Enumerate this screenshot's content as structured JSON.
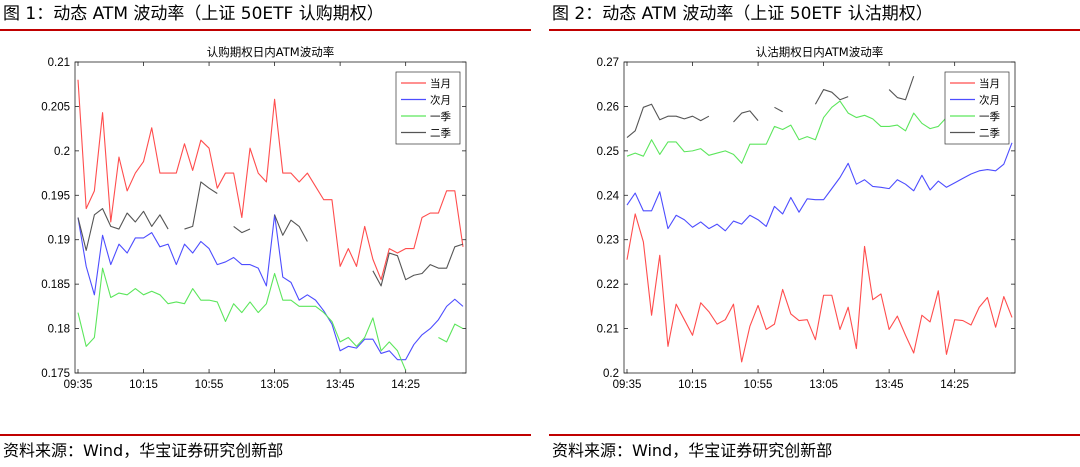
{
  "panels": [
    {
      "figure_title": "图 1：动态 ATM 波动率（上证 50ETF 认购期权）",
      "source": "资料来源：Wind，华宝证券研究创新部"
    },
    {
      "figure_title": "图 2：动态 ATM 波动率（上证 50ETF 认沽期权）",
      "source": "资料来源：Wind，华宝证券研究创新部"
    }
  ],
  "chart_data": [
    {
      "type": "line",
      "title": "认购期权日内ATM波动率",
      "xlabel": "",
      "ylabel": "",
      "x_ticks": [
        "09:35",
        "10:15",
        "10:55",
        "13:05",
        "13:45",
        "14:25"
      ],
      "x_tick_index": [
        0,
        8,
        16,
        24,
        32,
        40
      ],
      "n_points": 48,
      "ylim": [
        0.175,
        0.21
      ],
      "y_ticks": [
        "0.175",
        "0.18",
        "0.185",
        "0.19",
        "0.195",
        "0.2",
        "0.205",
        "0.21"
      ],
      "y_tick_values": [
        0.175,
        0.18,
        0.185,
        0.19,
        0.195,
        0.2,
        0.205,
        0.21
      ],
      "grid": false,
      "legend_position": "top-right",
      "series": [
        {
          "name": "当月",
          "color": "#ff4d4d",
          "values": [
            0.208,
            0.1935,
            0.1955,
            0.2043,
            0.192,
            0.1993,
            0.1955,
            0.1975,
            0.1988,
            0.2026,
            0.1975,
            0.1975,
            0.1975,
            0.2008,
            0.1978,
            0.2012,
            0.2003,
            0.1958,
            0.1975,
            0.1975,
            0.1925,
            0.2003,
            0.1975,
            0.1965,
            0.2058,
            0.1975,
            0.1975,
            0.1965,
            0.1975,
            0.196,
            0.1945,
            0.1945,
            0.187,
            0.189,
            0.187,
            0.1915,
            0.1878,
            0.1855,
            0.189,
            0.1885,
            0.189,
            0.189,
            0.1925,
            0.193,
            0.193,
            0.1955,
            0.1955,
            0.1892
          ]
        },
        {
          "name": "次月",
          "color": "#4d4dff",
          "values": [
            0.1925,
            0.187,
            0.1838,
            0.1905,
            0.1872,
            0.1895,
            0.1885,
            0.1902,
            0.1902,
            0.1908,
            0.1892,
            0.1895,
            0.1872,
            0.1895,
            0.1885,
            0.1898,
            0.189,
            0.1872,
            0.1875,
            0.188,
            0.1872,
            0.1872,
            0.1868,
            0.1848,
            0.1928,
            0.1858,
            0.1852,
            0.1832,
            0.1838,
            0.1832,
            0.182,
            0.1805,
            0.1775,
            0.178,
            0.1778,
            0.1788,
            0.1788,
            0.1772,
            0.1775,
            0.1765,
            0.1765,
            0.1782,
            0.1793,
            0.18,
            0.181,
            0.1825,
            0.1833,
            0.1825
          ]
        },
        {
          "name": "一季",
          "color": "#5ce65c",
          "values": [
            0.1818,
            0.178,
            0.179,
            0.1868,
            0.1835,
            0.184,
            0.1838,
            0.1845,
            0.1838,
            0.1842,
            0.1838,
            0.1828,
            0.183,
            0.1828,
            0.1845,
            0.1832,
            0.1832,
            0.183,
            0.1808,
            0.1828,
            0.1818,
            0.183,
            0.1818,
            0.1828,
            0.1862,
            0.1832,
            0.1832,
            0.1825,
            0.1825,
            0.1825,
            0.1818,
            0.1808,
            0.1785,
            0.179,
            0.178,
            0.179,
            0.1812,
            0.1775,
            0.1785,
            0.1775,
            0.1753,
            null,
            null,
            null,
            0.179,
            0.1785,
            0.1805,
            0.18
          ]
        },
        {
          "name": "二季",
          "color": "#555555",
          "values": [
            0.1925,
            0.1888,
            0.1928,
            0.1935,
            0.1915,
            0.1912,
            0.193,
            0.192,
            0.1932,
            0.1915,
            0.1928,
            0.1912,
            null,
            0.1912,
            0.1915,
            0.1965,
            0.1958,
            0.1952,
            null,
            0.1915,
            0.1908,
            0.1912,
            null,
            null,
            0.1928,
            0.1905,
            0.1922,
            0.1915,
            0.1898,
            null,
            null,
            null,
            null,
            null,
            null,
            null,
            0.1865,
            0.1848,
            0.1885,
            0.1882,
            0.1855,
            0.186,
            0.1862,
            0.1872,
            0.1868,
            0.1868,
            0.1892,
            0.1895
          ]
        }
      ]
    },
    {
      "type": "line",
      "title": "认沽期权日内ATM波动率",
      "xlabel": "",
      "ylabel": "",
      "x_ticks": [
        "09:35",
        "10:15",
        "10:55",
        "13:05",
        "13:45",
        "14:25"
      ],
      "x_tick_index": [
        0,
        8,
        16,
        24,
        32,
        40
      ],
      "n_points": 48,
      "ylim": [
        0.2,
        0.27
      ],
      "y_ticks": [
        "0.2",
        "0.21",
        "0.22",
        "0.23",
        "0.24",
        "0.25",
        "0.26",
        "0.27"
      ],
      "y_tick_values": [
        0.2,
        0.21,
        0.22,
        0.23,
        0.24,
        0.25,
        0.26,
        0.27
      ],
      "grid": false,
      "legend_position": "top-right",
      "series": [
        {
          "name": "当月",
          "color": "#ff4d4d",
          "values": [
            0.2255,
            0.2358,
            0.2295,
            0.213,
            0.2265,
            0.206,
            0.2155,
            0.212,
            0.2085,
            0.2158,
            0.2138,
            0.211,
            0.212,
            0.2155,
            0.2025,
            0.2105,
            0.2152,
            0.2098,
            0.211,
            0.2188,
            0.2133,
            0.2118,
            0.212,
            0.2075,
            0.2175,
            0.2175,
            0.2098,
            0.2148,
            0.2055,
            0.2285,
            0.2165,
            0.2178,
            0.2098,
            0.2128,
            0.2085,
            0.2045,
            0.213,
            0.2115,
            0.2185,
            0.2042,
            0.212,
            0.2118,
            0.2108,
            0.2148,
            0.217,
            0.2103,
            0.2172,
            0.2125
          ]
        },
        {
          "name": "次月",
          "color": "#4d4dff",
          "values": [
            0.2378,
            0.2405,
            0.2365,
            0.2365,
            0.2408,
            0.2325,
            0.2355,
            0.2345,
            0.2328,
            0.234,
            0.2325,
            0.2335,
            0.232,
            0.2342,
            0.2335,
            0.2355,
            0.2345,
            0.233,
            0.2375,
            0.2358,
            0.2395,
            0.2362,
            0.2392,
            0.239,
            0.239,
            0.2415,
            0.244,
            0.2472,
            0.2425,
            0.2435,
            0.242,
            0.2418,
            0.2415,
            0.2435,
            0.2425,
            0.241,
            0.2445,
            0.2412,
            0.2432,
            0.2418,
            0.2428,
            0.2438,
            0.2448,
            0.2455,
            0.2458,
            0.2455,
            0.247,
            0.2518
          ]
        },
        {
          "name": "一季",
          "color": "#5ce65c",
          "values": [
            0.2488,
            0.2495,
            0.2488,
            0.2525,
            0.2492,
            0.252,
            0.252,
            0.2498,
            0.25,
            0.2505,
            0.249,
            0.2495,
            0.25,
            0.2492,
            0.2472,
            0.2515,
            0.2515,
            0.2515,
            0.2555,
            0.2548,
            0.2558,
            0.2525,
            0.2532,
            0.2525,
            0.2575,
            0.2598,
            0.2612,
            0.2585,
            0.2575,
            0.258,
            0.2572,
            0.2555,
            0.2555,
            0.2558,
            0.2545,
            0.2585,
            0.2562,
            0.255,
            0.2555,
            0.2575,
            0.257,
            0.2565,
            null,
            null,
            null,
            null,
            null,
            null
          ]
        },
        {
          "name": "二季",
          "color": "#555555",
          "values": [
            0.253,
            0.2545,
            0.2598,
            0.2605,
            0.257,
            0.2578,
            0.2578,
            0.2572,
            0.2578,
            0.2568,
            0.2578,
            null,
            null,
            0.2565,
            0.2585,
            0.259,
            0.2568,
            null,
            0.2598,
            0.2588,
            null,
            null,
            null,
            0.2605,
            0.2638,
            0.2632,
            0.2615,
            0.2622,
            null,
            null,
            null,
            null,
            0.2638,
            0.262,
            0.2615,
            0.2668,
            null,
            null,
            null,
            null,
            null,
            null,
            null,
            null,
            null,
            null,
            null,
            null
          ]
        }
      ]
    }
  ]
}
